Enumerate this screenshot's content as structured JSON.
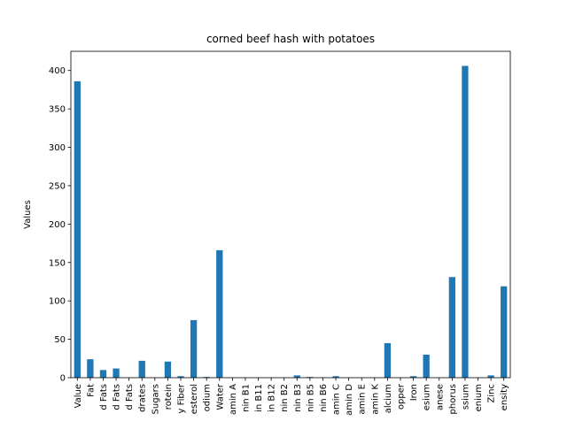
{
  "chart_data": {
    "type": "bar",
    "title": "corned beef hash with potatoes",
    "xlabel": "",
    "ylabel": "Values",
    "ylim": [
      0,
      425
    ],
    "yticks": [
      0,
      50,
      100,
      150,
      200,
      250,
      300,
      350,
      400
    ],
    "grid": false,
    "bar_color": "#1f77b4",
    "categories": [
      "Value",
      "Fat",
      "d Fats",
      "d Fats",
      "d Fats",
      "drates",
      "Sugars",
      "rotein",
      "y Fiber",
      "esterol",
      "odium",
      "Water",
      "amin A",
      "nin B1",
      "in B11",
      "in B12",
      "nin B2",
      "nin B3",
      "nin B5",
      "nin B6",
      "amin C",
      "amin D",
      "amin E",
      "amin K",
      "alcium",
      "opper",
      "Iron",
      "esium",
      "anese",
      "phorus",
      "ssium",
      "enium",
      "Zinc",
      "ensity"
    ],
    "values": [
      386,
      24,
      10,
      12,
      0,
      22,
      0,
      21,
      2,
      75,
      1,
      166,
      0,
      0,
      0,
      0,
      0,
      3,
      1,
      0.5,
      2,
      0,
      0,
      0,
      45,
      0,
      2,
      30,
      0,
      131,
      406,
      0,
      3,
      119
    ]
  }
}
